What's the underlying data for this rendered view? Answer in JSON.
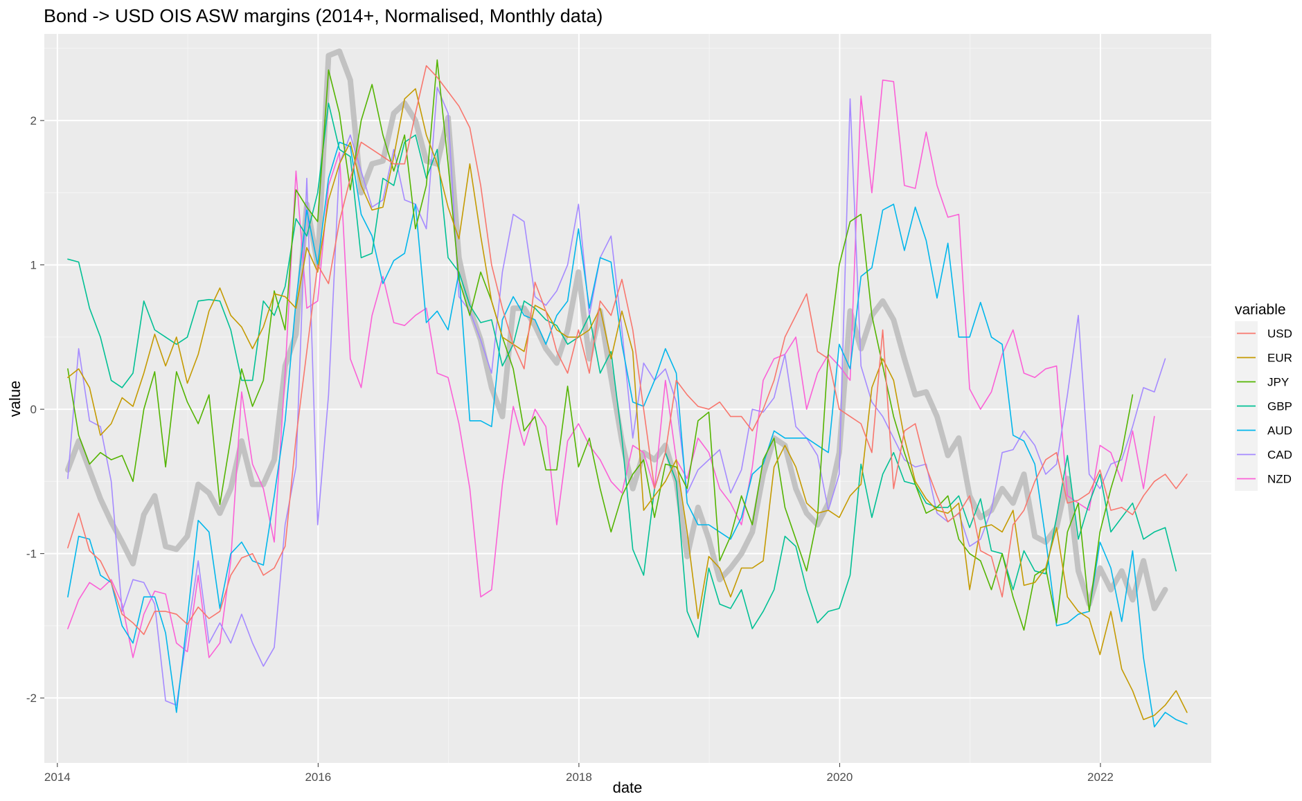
{
  "chart_data": {
    "type": "line",
    "title": "Bond -> USD OIS ASW margins (2014+, Normalised, Monthly data)",
    "xlabel": "date",
    "ylabel": "value",
    "xlim": [
      2013.9,
      2022.85
    ],
    "ylim": [
      -2.45,
      2.6
    ],
    "x_ticks": [
      2014,
      2016,
      2018,
      2020,
      2022
    ],
    "x_tick_labels": [
      "2014",
      "2016",
      "2018",
      "2020",
      "2022"
    ],
    "y_ticks": [
      -2,
      -1,
      0,
      1,
      2
    ],
    "y_tick_labels": [
      "-2",
      "-1",
      "0",
      "1",
      "2"
    ],
    "grid": true,
    "legend_title": "variable",
    "legend_position": "right",
    "x_start": 2014.08,
    "x_step": 0.0833333,
    "series": [
      {
        "name": "USD",
        "color": "#F8766D",
        "values": [
          -0.96,
          -0.72,
          -0.98,
          -1.05,
          -1.2,
          -1.42,
          -1.48,
          -1.56,
          -1.4,
          -1.4,
          -1.42,
          -1.49,
          -1.37,
          -1.45,
          -1.4,
          -1.15,
          -1.03,
          -1.0,
          -1.15,
          -1.1,
          -0.95,
          -0.2,
          0.4,
          1.0,
          0.87,
          1.3,
          1.6,
          1.85,
          1.8,
          1.75,
          1.7,
          1.7,
          2.05,
          2.38,
          2.3,
          2.2,
          2.1,
          1.95,
          1.55,
          1.0,
          0.7,
          0.45,
          0.28,
          0.88,
          0.68,
          0.4,
          0.25,
          0.55,
          0.25,
          0.75,
          0.65,
          0.9,
          0.55,
          0.0,
          -0.55,
          -0.3,
          0.2,
          0.1,
          0.02,
          0.0,
          0.05,
          -0.05,
          -0.05,
          -0.15,
          0.0,
          0.2,
          0.5,
          0.65,
          0.8,
          0.4,
          0.35,
          0.0,
          -0.05,
          -0.1,
          -0.3,
          0.55,
          -0.55,
          -0.15,
          -0.1,
          -0.4,
          -0.6,
          -0.78,
          -0.72,
          -0.6,
          -0.98,
          -1.02,
          -1.3,
          -0.8,
          -0.7,
          -0.5,
          -0.35,
          -0.3,
          -0.65,
          -0.63,
          -0.58,
          -0.42,
          -0.7,
          -0.68,
          -0.73,
          -0.6,
          -0.5,
          -0.45,
          -0.55,
          -0.45
        ]
      },
      {
        "name": "EUR",
        "color": "#C49A00",
        "values": [
          0.22,
          0.28,
          0.15,
          -0.18,
          -0.1,
          0.08,
          0.02,
          0.25,
          0.52,
          0.3,
          0.5,
          0.18,
          0.38,
          0.68,
          0.84,
          0.65,
          0.57,
          0.42,
          0.57,
          0.8,
          0.78,
          0.7,
          1.12,
          0.95,
          1.45,
          1.7,
          1.85,
          1.55,
          1.38,
          1.4,
          1.75,
          2.15,
          2.22,
          1.9,
          1.7,
          1.4,
          1.18,
          1.7,
          1.2,
          0.75,
          0.5,
          0.45,
          0.4,
          0.72,
          0.68,
          0.55,
          0.5,
          0.5,
          0.55,
          0.7,
          0.35,
          0.68,
          0.4,
          -0.7,
          -0.6,
          -0.5,
          -0.35,
          -0.85,
          -1.45,
          -1.02,
          -1.1,
          -1.3,
          -1.1,
          -1.1,
          -1.05,
          -0.4,
          -0.25,
          -0.4,
          -0.65,
          -0.72,
          -0.7,
          -0.75,
          -0.6,
          -0.52,
          0.15,
          0.35,
          0.2,
          -0.2,
          -0.5,
          -0.62,
          -0.7,
          -0.72,
          -0.65,
          -1.25,
          -0.82,
          -0.8,
          -0.85,
          -0.7,
          -1.22,
          -1.2,
          -1.1,
          -0.82,
          -1.3,
          -1.4,
          -1.45,
          -1.7,
          -1.4,
          -1.8,
          -1.95,
          -2.15,
          -2.12,
          -2.05,
          -1.95,
          -2.1
        ]
      },
      {
        "name": "JPY",
        "color": "#53B400",
        "values": [
          0.28,
          -0.18,
          -0.38,
          -0.3,
          -0.35,
          -0.32,
          -0.5,
          0.0,
          0.26,
          -0.4,
          0.26,
          0.05,
          -0.1,
          0.1,
          -0.66,
          -0.2,
          0.28,
          0.02,
          0.2,
          0.82,
          0.55,
          1.52,
          1.4,
          1.3,
          2.35,
          2.05,
          1.52,
          2.0,
          2.25,
          1.9,
          1.65,
          1.9,
          1.25,
          1.55,
          2.42,
          1.7,
          0.9,
          0.65,
          0.95,
          0.75,
          0.5,
          0.28,
          -0.15,
          -0.05,
          -0.42,
          -0.42,
          0.16,
          -0.4,
          -0.2,
          -0.55,
          -0.85,
          -0.6,
          -0.45,
          -0.35,
          -0.75,
          -0.38,
          -0.4,
          -0.55,
          -0.08,
          -0.02,
          -1.05,
          -0.88,
          -0.6,
          -0.8,
          -0.35,
          -0.2,
          -0.68,
          -0.9,
          -1.12,
          -0.75,
          0.4,
          1.0,
          1.3,
          1.35,
          0.65,
          0.3,
          -0.05,
          -0.3,
          -0.52,
          -0.72,
          -0.68,
          -0.6,
          -0.9,
          -1.0,
          -1.05,
          -1.25,
          -1.0,
          -1.3,
          -1.53,
          -1.15,
          -1.1,
          -1.48,
          -0.85,
          -0.65,
          -1.4,
          -0.85,
          -0.55,
          -0.3,
          0.1
        ]
      },
      {
        "name": "GBP",
        "color": "#00C094",
        "values": [
          1.04,
          1.02,
          0.7,
          0.5,
          0.2,
          0.15,
          0.25,
          0.75,
          0.55,
          0.5,
          0.45,
          0.5,
          0.75,
          0.76,
          0.75,
          0.55,
          0.2,
          0.2,
          0.75,
          0.65,
          0.85,
          1.32,
          1.2,
          1.5,
          2.12,
          1.8,
          1.75,
          1.05,
          1.08,
          1.6,
          1.55,
          1.85,
          1.9,
          1.6,
          1.8,
          1.05,
          0.95,
          0.72,
          0.6,
          0.62,
          0.3,
          0.45,
          0.75,
          0.7,
          0.62,
          0.58,
          0.45,
          0.5,
          0.65,
          0.25,
          0.4,
          -0.2,
          -0.97,
          -1.15,
          -0.55,
          -0.3,
          -0.5,
          -1.4,
          -1.58,
          -1.1,
          -1.35,
          -1.38,
          -1.25,
          -1.52,
          -1.4,
          -1.25,
          -0.88,
          -0.95,
          -1.25,
          -1.48,
          -1.4,
          -1.38,
          -1.15,
          -0.38,
          -0.75,
          -0.45,
          -0.3,
          -0.5,
          -0.52,
          -0.65,
          -0.68,
          -0.68,
          -0.6,
          -0.82,
          -0.62,
          -0.98,
          -1.0,
          -1.25,
          -0.98,
          -1.12,
          -1.14,
          -0.75,
          -0.32,
          -0.9,
          -0.65,
          -0.45,
          -0.85,
          -0.75,
          -0.65,
          -0.9,
          -0.85,
          -0.82,
          -1.12
        ]
      },
      {
        "name": "AUD",
        "color": "#00B6EB",
        "values": [
          -1.3,
          -0.88,
          -0.9,
          -1.15,
          -1.2,
          -1.5,
          -1.62,
          -1.3,
          -1.3,
          -1.55,
          -2.1,
          -1.45,
          -0.77,
          -0.85,
          -1.38,
          -1.0,
          -0.92,
          -1.05,
          -1.08,
          -0.6,
          -0.08,
          0.75,
          1.38,
          1.0,
          1.6,
          1.85,
          1.82,
          1.35,
          1.2,
          0.87,
          1.03,
          1.08,
          1.42,
          0.6,
          0.68,
          0.55,
          0.95,
          -0.08,
          -0.08,
          -0.12,
          0.62,
          0.78,
          0.65,
          0.62,
          0.45,
          0.65,
          0.75,
          1.25,
          0.7,
          1.05,
          1.02,
          0.45,
          0.05,
          0.02,
          0.2,
          0.42,
          0.25,
          -0.65,
          -0.8,
          -0.8,
          -0.85,
          -0.9,
          -0.75,
          -0.45,
          -0.38,
          -0.15,
          -0.2,
          -0.2,
          -0.2,
          -0.25,
          -0.3,
          0.45,
          0.28,
          0.92,
          0.98,
          1.38,
          1.42,
          1.1,
          1.4,
          1.17,
          0.77,
          1.15,
          0.5,
          0.5,
          0.74,
          0.5,
          0.45,
          -0.18,
          -0.22,
          -0.38,
          -0.9,
          -1.5,
          -1.48,
          -1.42,
          -1.4,
          -0.92,
          -1.1,
          -1.47,
          -0.98,
          -1.72,
          -2.2,
          -2.1,
          -2.15,
          -2.18
        ]
      },
      {
        "name": "CAD",
        "color": "#A58AFF",
        "values": [
          -0.48,
          0.42,
          -0.08,
          -0.12,
          -0.5,
          -1.4,
          -1.18,
          -1.2,
          -1.35,
          -2.02,
          -2.05,
          -1.55,
          -1.05,
          -1.62,
          -1.48,
          -1.62,
          -1.42,
          -1.62,
          -1.78,
          -1.65,
          -0.8,
          -0.4,
          1.6,
          -0.8,
          0.1,
          1.7,
          1.9,
          1.65,
          1.4,
          1.45,
          1.8,
          1.45,
          1.42,
          1.25,
          2.23,
          2.05,
          0.78,
          0.68,
          0.48,
          0.25,
          0.95,
          1.35,
          1.3,
          0.78,
          0.72,
          0.82,
          1.0,
          1.42,
          0.65,
          1.05,
          1.2,
          0.55,
          -0.2,
          0.32,
          0.2,
          0.28,
          0.05,
          -0.58,
          -0.42,
          -0.35,
          -0.28,
          -0.58,
          -0.42,
          0.0,
          -0.02,
          0.08,
          0.38,
          -0.12,
          -0.2,
          -0.32,
          -0.7,
          -0.45,
          2.15,
          0.3,
          0.05,
          -0.05,
          -0.2,
          -0.35,
          -0.4,
          -0.38,
          -0.72,
          -0.78,
          -0.72,
          -0.95,
          -0.9,
          -0.7,
          -0.3,
          -0.28,
          -0.15,
          -0.25,
          -0.45,
          -0.38,
          0.1,
          0.65,
          -0.45,
          -0.55,
          -0.38,
          -0.35,
          -0.12,
          0.15,
          0.12,
          0.35
        ]
      },
      {
        "name": "NZD",
        "color": "#FB61D7",
        "values": [
          -1.52,
          -1.32,
          -1.2,
          -1.25,
          -1.18,
          -1.35,
          -1.72,
          -1.42,
          -1.26,
          -1.28,
          -1.62,
          -1.68,
          -1.15,
          -1.72,
          -1.62,
          -1.05,
          0.12,
          -0.38,
          -0.55,
          -0.92,
          0.25,
          1.65,
          0.7,
          0.75,
          1.55,
          1.78,
          0.35,
          0.15,
          0.65,
          0.92,
          0.6,
          0.58,
          0.65,
          0.7,
          0.25,
          0.22,
          -0.1,
          -0.55,
          -1.3,
          -1.25,
          -0.52,
          0.02,
          -0.25,
          0.0,
          -0.12,
          -0.8,
          -0.22,
          -0.1,
          -0.25,
          -0.35,
          -0.5,
          -0.58,
          -0.25,
          -0.3,
          -0.55,
          0.2,
          -0.35,
          -0.48,
          -0.2,
          -0.3,
          -0.55,
          -0.65,
          -0.8,
          -0.4,
          0.2,
          0.35,
          0.38,
          0.5,
          0.0,
          0.25,
          0.38,
          0.3,
          0.2,
          2.17,
          1.5,
          2.28,
          2.27,
          1.55,
          1.53,
          1.92,
          1.55,
          1.33,
          1.35,
          0.14,
          0.0,
          0.12,
          0.38,
          0.55,
          0.25,
          0.22,
          0.28,
          0.3,
          -0.6,
          -0.65,
          -0.7,
          -0.25,
          -0.3,
          -0.5,
          -0.15,
          -0.55,
          -0.05
        ]
      },
      {
        "name": "",
        "color": "#BEBEBE",
        "values": [
          -0.42,
          -0.22,
          -0.42,
          -0.62,
          -0.78,
          -0.92,
          -1.07,
          -0.73,
          -0.6,
          -0.95,
          -0.97,
          -0.88,
          -0.52,
          -0.58,
          -0.72,
          -0.55,
          -0.22,
          -0.52,
          -0.52,
          -0.35,
          0.3,
          0.52,
          1.42,
          1.0,
          2.45,
          2.48,
          2.28,
          1.5,
          1.7,
          1.72,
          2.05,
          2.12,
          2.0,
          1.72,
          1.7,
          2.02,
          1.05,
          0.7,
          0.48,
          0.15,
          -0.05,
          0.7,
          0.7,
          0.58,
          0.42,
          0.32,
          0.55,
          0.95,
          0.35,
          0.68,
          0.22,
          -0.22,
          -0.55,
          -0.3,
          -0.35,
          -0.25,
          -0.5,
          -1.02,
          -0.68,
          -0.9,
          -1.18,
          -1.1,
          -1.0,
          -0.85,
          -0.45,
          -0.2,
          -0.25,
          -0.55,
          -0.72,
          -0.8,
          -0.65,
          -0.3,
          0.68,
          0.42,
          0.65,
          0.75,
          0.62,
          0.35,
          0.1,
          0.12,
          -0.05,
          -0.32,
          -0.2,
          -0.6,
          -0.75,
          -0.7,
          -0.55,
          -0.65,
          -0.45,
          -0.88,
          -0.92,
          -0.82,
          -0.48,
          -1.12,
          -1.35,
          -1.1,
          -1.25,
          -1.12,
          -1.32,
          -1.05,
          -1.38,
          -1.25
        ]
      }
    ]
  }
}
